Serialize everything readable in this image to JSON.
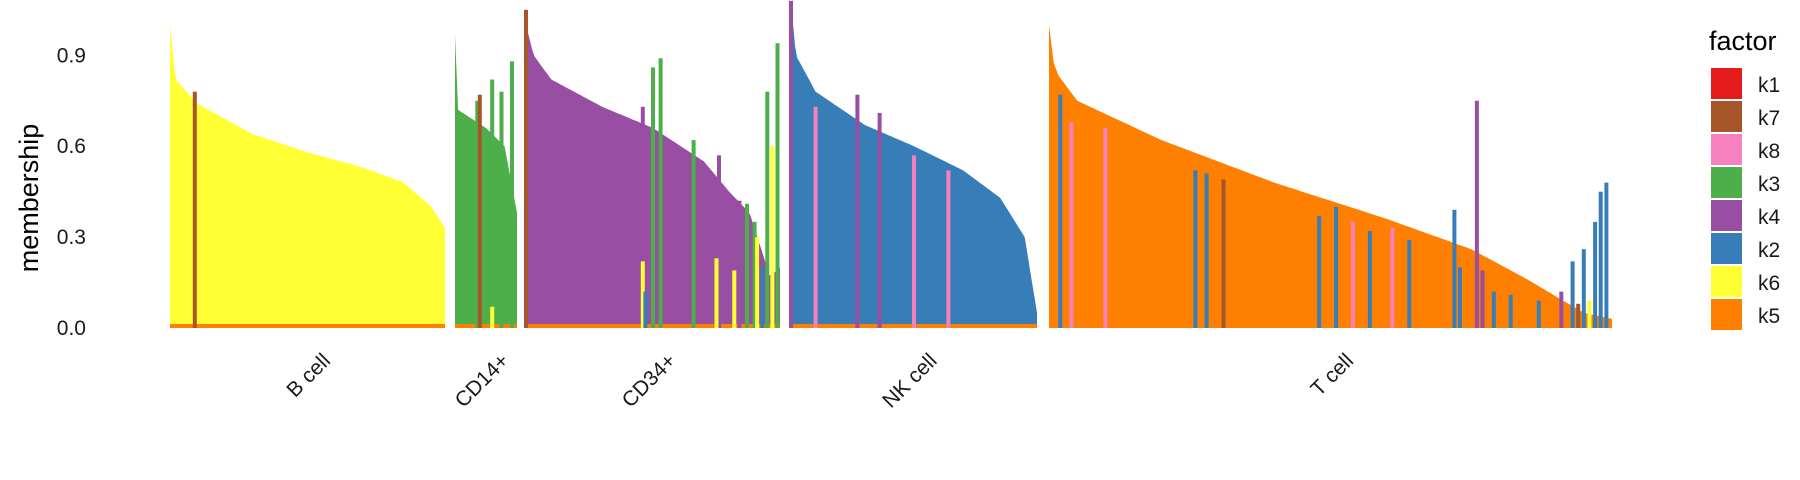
{
  "chart_data": {
    "type": "bar",
    "subtype": "stacked structure plot",
    "ylabel": "membership",
    "ylim": [
      0,
      1.05
    ],
    "yticks": [
      0.0,
      0.3,
      0.6,
      0.9
    ],
    "ytick_labels": [
      "0.0",
      "0.3",
      "0.6",
      "0.9"
    ],
    "grid": false,
    "legend": {
      "title": "factor",
      "placement": "right",
      "entries": [
        {
          "name": "k1",
          "color": "#E41A1C"
        },
        {
          "name": "k7",
          "color": "#A65628"
        },
        {
          "name": "k8",
          "color": "#F781BF"
        },
        {
          "name": "k3",
          "color": "#4DAF4A"
        },
        {
          "name": "k4",
          "color": "#984EA3"
        },
        {
          "name": "k2",
          "color": "#377EB8"
        },
        {
          "name": "k6",
          "color": "#FFFF33"
        },
        {
          "name": "k5",
          "color": "#FF7F00"
        }
      ]
    },
    "groups": [
      {
        "label": "B cell",
        "main_factor": "k6",
        "base_factor": "k5",
        "curve": [
          [
            0,
            1.0
          ],
          [
            0.02,
            0.82
          ],
          [
            0.1,
            0.74
          ],
          [
            0.3,
            0.64
          ],
          [
            0.5,
            0.58
          ],
          [
            0.7,
            0.53
          ],
          [
            0.85,
            0.48
          ],
          [
            0.95,
            0.4
          ],
          [
            1.0,
            0.33
          ]
        ],
        "spikes": [
          {
            "pos": 0.09,
            "factor": "k7",
            "top": 0.78
          }
        ]
      },
      {
        "label": "CD14+",
        "main_factor": "k3",
        "base_factor": "k5",
        "curve": [
          [
            0,
            0.97
          ],
          [
            0.05,
            0.72
          ],
          [
            0.2,
            0.7
          ],
          [
            0.5,
            0.66
          ],
          [
            0.8,
            0.6
          ],
          [
            1.0,
            0.38
          ]
        ],
        "spikes": [
          {
            "pos": 0.36,
            "factor": "k3",
            "top": 0.75
          },
          {
            "pos": 0.4,
            "factor": "k7",
            "top": 0.77
          },
          {
            "pos": 0.6,
            "factor": "k3",
            "top": 0.82
          },
          {
            "pos": 0.75,
            "factor": "k3",
            "top": 0.78
          },
          {
            "pos": 0.92,
            "factor": "k3",
            "top": 0.88
          },
          {
            "pos": 0.6,
            "factor": "k6",
            "top": 0.07
          }
        ]
      },
      {
        "label": "CD34+",
        "main_factor": "k4",
        "base_factor": "k5",
        "curve": [
          [
            0,
            1.0
          ],
          [
            0.03,
            0.9
          ],
          [
            0.1,
            0.82
          ],
          [
            0.3,
            0.73
          ],
          [
            0.5,
            0.66
          ],
          [
            0.7,
            0.55
          ],
          [
            0.8,
            0.45
          ],
          [
            0.88,
            0.38
          ],
          [
            0.93,
            0.25
          ],
          [
            0.96,
            0.17
          ],
          [
            1.0,
            0.2
          ]
        ],
        "spikes": [
          {
            "pos": 0.0,
            "factor": "k7",
            "top": 1.05
          },
          {
            "pos": 0.46,
            "factor": "k4",
            "top": 0.73
          },
          {
            "pos": 0.5,
            "factor": "k3",
            "top": 0.86
          },
          {
            "pos": 0.53,
            "factor": "k3",
            "top": 0.89
          },
          {
            "pos": 0.66,
            "factor": "k3",
            "top": 0.62
          },
          {
            "pos": 0.76,
            "factor": "k4",
            "top": 0.57
          },
          {
            "pos": 0.84,
            "factor": "k4",
            "top": 0.42
          },
          {
            "pos": 0.87,
            "factor": "k3",
            "top": 0.41
          },
          {
            "pos": 0.9,
            "factor": "k3",
            "top": 0.35
          },
          {
            "pos": 0.95,
            "factor": "k3",
            "top": 0.78
          },
          {
            "pos": 0.97,
            "factor": "k6",
            "top": 0.6
          },
          {
            "pos": 0.99,
            "factor": "k3",
            "top": 0.94
          },
          {
            "pos": 0.46,
            "factor": "k6",
            "top": 0.22
          },
          {
            "pos": 0.75,
            "factor": "k6",
            "top": 0.23
          },
          {
            "pos": 0.82,
            "factor": "k6",
            "top": 0.19
          },
          {
            "pos": 0.91,
            "factor": "k6",
            "top": 0.3
          },
          {
            "pos": 0.93,
            "factor": "k2",
            "top": 0.2
          },
          {
            "pos": 0.47,
            "factor": "k2",
            "top": 0.12
          }
        ]
      },
      {
        "label": "NK cell",
        "main_factor": "k2",
        "base_factor": "k5",
        "curve": [
          [
            0,
            1.08
          ],
          [
            0.02,
            0.9
          ],
          [
            0.1,
            0.78
          ],
          [
            0.3,
            0.67
          ],
          [
            0.5,
            0.6
          ],
          [
            0.7,
            0.52
          ],
          [
            0.85,
            0.43
          ],
          [
            0.95,
            0.3
          ],
          [
            1.0,
            0.05
          ]
        ],
        "spikes": [
          {
            "pos": 0.1,
            "factor": "k8",
            "top": 0.73
          },
          {
            "pos": 0.27,
            "factor": "k4",
            "top": 0.77
          },
          {
            "pos": 0.36,
            "factor": "k4",
            "top": 0.71
          },
          {
            "pos": 0.5,
            "factor": "k8",
            "top": 0.57
          },
          {
            "pos": 0.64,
            "factor": "k8",
            "top": 0.52
          },
          {
            "pos": 0.0,
            "factor": "k4",
            "top": 1.08
          }
        ]
      },
      {
        "label": "T cell",
        "main_factor": "k5",
        "base_factor": "k5",
        "curve": [
          [
            0,
            1.0
          ],
          [
            0.01,
            0.85
          ],
          [
            0.05,
            0.75
          ],
          [
            0.2,
            0.62
          ],
          [
            0.4,
            0.48
          ],
          [
            0.6,
            0.36
          ],
          [
            0.75,
            0.26
          ],
          [
            0.85,
            0.16
          ],
          [
            0.95,
            0.05
          ],
          [
            1.0,
            0.03
          ]
        ],
        "spikes": [
          {
            "pos": 0.02,
            "factor": "k2",
            "top": 0.77
          },
          {
            "pos": 0.04,
            "factor": "k8",
            "top": 0.68
          },
          {
            "pos": 0.1,
            "factor": "k8",
            "top": 0.66
          },
          {
            "pos": 0.26,
            "factor": "k2",
            "top": 0.52
          },
          {
            "pos": 0.28,
            "factor": "k2",
            "top": 0.51
          },
          {
            "pos": 0.31,
            "factor": "k7",
            "top": 0.49
          },
          {
            "pos": 0.48,
            "factor": "k2",
            "top": 0.37
          },
          {
            "pos": 0.51,
            "factor": "k2",
            "top": 0.4
          },
          {
            "pos": 0.54,
            "factor": "k8",
            "top": 0.35
          },
          {
            "pos": 0.57,
            "factor": "k2",
            "top": 0.32
          },
          {
            "pos": 0.61,
            "factor": "k8",
            "top": 0.33
          },
          {
            "pos": 0.64,
            "factor": "k2",
            "top": 0.29
          },
          {
            "pos": 0.72,
            "factor": "k2",
            "top": 0.39
          },
          {
            "pos": 0.73,
            "factor": "k2",
            "top": 0.2
          },
          {
            "pos": 0.76,
            "factor": "k4",
            "top": 0.75
          },
          {
            "pos": 0.77,
            "factor": "k4",
            "top": 0.19
          },
          {
            "pos": 0.79,
            "factor": "k2",
            "top": 0.12
          },
          {
            "pos": 0.82,
            "factor": "k2",
            "top": 0.11
          },
          {
            "pos": 0.87,
            "factor": "k2",
            "top": 0.09
          },
          {
            "pos": 0.91,
            "factor": "k4",
            "top": 0.12
          },
          {
            "pos": 0.93,
            "factor": "k2",
            "top": 0.22
          },
          {
            "pos": 0.95,
            "factor": "k2",
            "top": 0.26
          },
          {
            "pos": 0.97,
            "factor": "k2",
            "top": 0.35
          },
          {
            "pos": 0.98,
            "factor": "k2",
            "top": 0.45
          },
          {
            "pos": 0.99,
            "factor": "k2",
            "top": 0.48
          },
          {
            "pos": 0.94,
            "factor": "k7",
            "top": 0.08
          },
          {
            "pos": 0.96,
            "factor": "k6",
            "top": 0.09
          }
        ]
      }
    ]
  }
}
